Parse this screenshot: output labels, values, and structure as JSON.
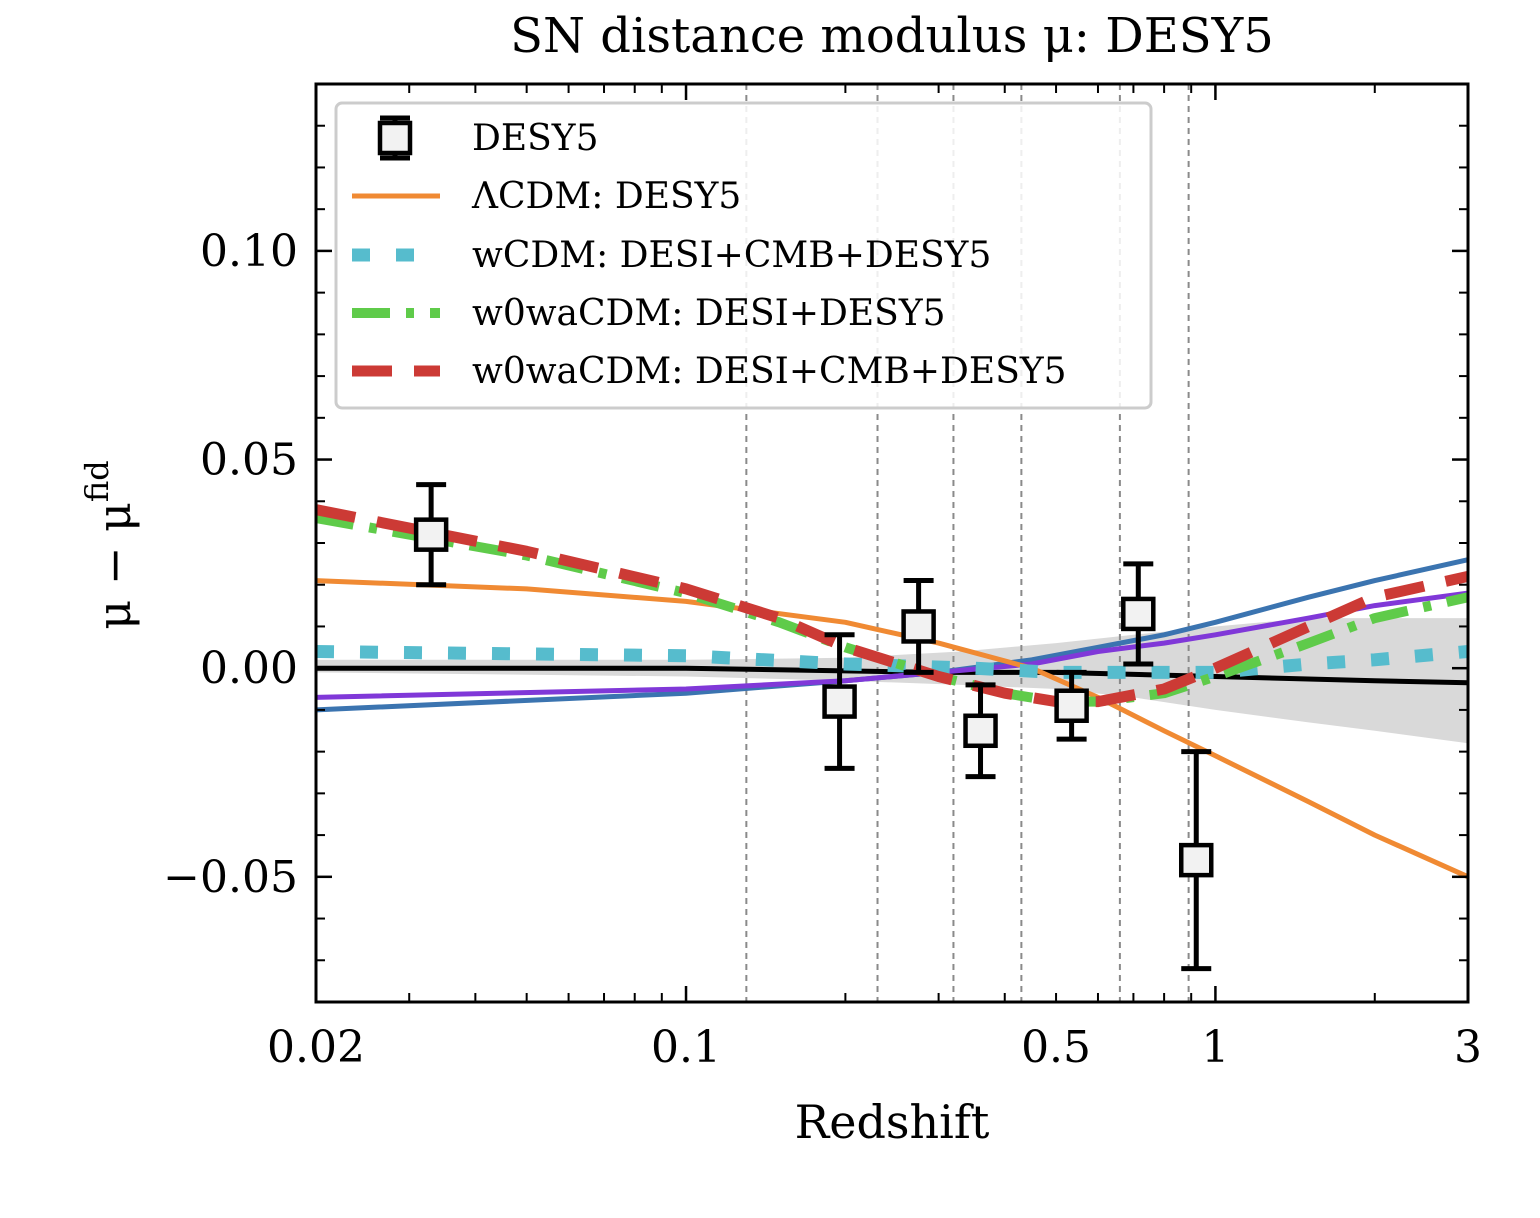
{
  "chart_data": {
    "type": "scatter",
    "title": "SN distance modulus μ: DESY5",
    "xlabel": "Redshift",
    "ylabel": "μ − μ",
    "ylabel_sup": "fid",
    "xscale": "log",
    "xlim": [
      0.02,
      3
    ],
    "ylim": [
      -0.08,
      0.14
    ],
    "xticks": [
      {
        "value": 0.02,
        "label": "0.02"
      },
      {
        "value": 0.1,
        "label": "0.1"
      },
      {
        "value": 0.5,
        "label": "0.5"
      },
      {
        "value": 1,
        "label": "1"
      },
      {
        "value": 3,
        "label": "3"
      }
    ],
    "yticks": [
      {
        "value": -0.05,
        "label": "−0.05"
      },
      {
        "value": 0.0,
        "label": "0.00"
      },
      {
        "value": 0.05,
        "label": "0.05"
      },
      {
        "value": 0.1,
        "label": "0.10"
      }
    ],
    "vlines": [
      0.13,
      0.23,
      0.32,
      0.43,
      0.66,
      0.89
    ],
    "points": {
      "name": "DESY5",
      "x": [
        0.033,
        0.195,
        0.275,
        0.36,
        0.535,
        0.715,
        0.92
      ],
      "y": [
        0.032,
        -0.008,
        0.01,
        -0.015,
        -0.009,
        0.013,
        -0.046
      ],
      "yerr": [
        0.012,
        0.016,
        0.011,
        0.011,
        0.008,
        0.012,
        0.026
      ]
    },
    "band": {
      "x": [
        0.02,
        0.1,
        0.2,
        0.33,
        0.5,
        0.7,
        1.0,
        1.5,
        2.0,
        3.0
      ],
      "upper": [
        0.002,
        0.002,
        0.0025,
        0.004,
        0.006,
        0.008,
        0.01,
        0.012,
        0.012,
        0.012
      ],
      "lower": [
        -0.001,
        -0.002,
        -0.003,
        -0.004,
        -0.005,
        -0.007,
        -0.01,
        -0.013,
        -0.015,
        -0.018
      ],
      "color": "#d9d9d9"
    },
    "series": [
      {
        "name": "ΛCDM: DESY5",
        "color": "#f08a33",
        "style": "solid",
        "in_legend": true,
        "x": [
          0.02,
          0.05,
          0.1,
          0.2,
          0.3,
          0.45,
          0.6,
          0.8,
          1.0,
          1.5,
          2.0,
          3.0
        ],
        "y": [
          0.021,
          0.019,
          0.016,
          0.011,
          0.006,
          0.0,
          -0.007,
          -0.015,
          -0.021,
          -0.032,
          -0.04,
          -0.05
        ]
      },
      {
        "name": "wCDM: DESI+CMB+DESY5",
        "color": "#56bccd",
        "style": "dotted",
        "in_legend": true,
        "x": [
          0.02,
          0.1,
          0.2,
          0.35,
          0.5,
          0.7,
          1.0,
          1.5,
          2.0,
          3.0
        ],
        "y": [
          0.004,
          0.003,
          0.001,
          0.0,
          -0.001,
          -0.001,
          -0.001,
          0.001,
          0.002,
          0.004
        ]
      },
      {
        "name": "w0waCDM: DESI+DESY5",
        "color": "#5fcb4a",
        "style": "dashdot",
        "in_legend": true,
        "x": [
          0.02,
          0.05,
          0.1,
          0.15,
          0.2,
          0.3,
          0.4,
          0.5,
          0.6,
          0.8,
          1.0,
          1.5,
          2.0,
          3.0
        ],
        "y": [
          0.036,
          0.027,
          0.018,
          0.011,
          0.005,
          -0.002,
          -0.006,
          -0.008,
          -0.008,
          -0.006,
          -0.002,
          0.006,
          0.012,
          0.017
        ]
      },
      {
        "name": "w0waCDM: DESI+CMB+DESY5",
        "color": "#cc3a35",
        "style": "dashed",
        "in_legend": true,
        "x": [
          0.02,
          0.05,
          0.1,
          0.15,
          0.2,
          0.3,
          0.4,
          0.5,
          0.6,
          0.8,
          1.0,
          1.5,
          2.0,
          3.0
        ],
        "y": [
          0.038,
          0.028,
          0.019,
          0.012,
          0.005,
          -0.002,
          -0.006,
          -0.008,
          -0.008,
          -0.005,
          0.0,
          0.01,
          0.017,
          0.022
        ]
      },
      {
        "name": "",
        "color": "#8038d8",
        "style": "solid",
        "in_legend": false,
        "x": [
          0.02,
          0.1,
          0.2,
          0.3,
          0.45,
          0.6,
          0.8,
          1.0,
          1.5,
          2.0,
          3.0
        ],
        "y": [
          -0.007,
          -0.005,
          -0.003,
          -0.001,
          0.001,
          0.004,
          0.006,
          0.008,
          0.012,
          0.015,
          0.018
        ]
      },
      {
        "name": "",
        "color": "#3b74b0",
        "style": "solid",
        "in_legend": false,
        "x": [
          0.02,
          0.1,
          0.2,
          0.3,
          0.45,
          0.6,
          0.8,
          1.0,
          1.5,
          2.0,
          3.0
        ],
        "y": [
          -0.01,
          -0.006,
          -0.003,
          -0.001,
          0.002,
          0.005,
          0.008,
          0.011,
          0.017,
          0.021,
          0.026
        ]
      },
      {
        "name": "",
        "color": "#000000",
        "style": "solid",
        "in_legend": false,
        "x": [
          0.02,
          0.1,
          0.3,
          0.5,
          1.0,
          2.0,
          3.0
        ],
        "y": [
          0.0,
          0.0,
          -0.001,
          -0.001,
          -0.002,
          -0.003,
          -0.0035
        ]
      }
    ],
    "legend": {
      "position": "upper-left",
      "entries": [
        {
          "label": "DESY5",
          "kind": "marker"
        },
        {
          "label": "ΛCDM: DESY5",
          "kind": "line",
          "series": 0
        },
        {
          "label": "wCDM: DESI+CMB+DESY5",
          "kind": "line",
          "series": 1
        },
        {
          "label": "w0waCDM: DESI+DESY5",
          "kind": "line",
          "series": 2
        },
        {
          "label": "w0waCDM: DESI+CMB+DESY5",
          "kind": "line",
          "series": 3
        }
      ]
    }
  }
}
